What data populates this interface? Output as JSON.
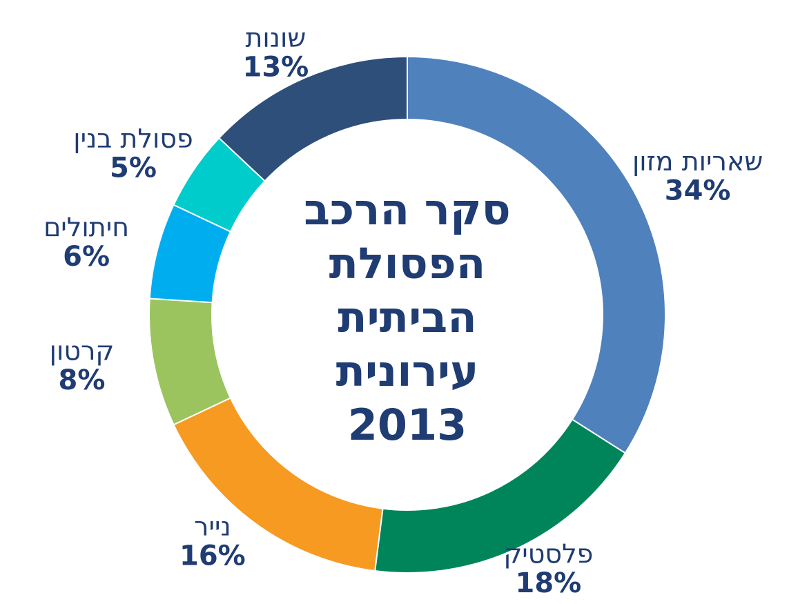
{
  "chart_data": {
    "type": "donut",
    "title": [
      "סקר הרכב",
      "הפסולת",
      "הביתית",
      "עירונית",
      "2013"
    ],
    "categories": [
      "שאריות מזון",
      "פלסטיק",
      "נייר",
      "קרטון",
      "חיתולים",
      "פסולת בנין",
      "שונות"
    ],
    "values": [
      34,
      18,
      16,
      8,
      6,
      5,
      13
    ],
    "value_labels": [
      "34%",
      "18%",
      "16%",
      "8%",
      "6%",
      "5%",
      "13%"
    ],
    "colors": [
      "#4f81bd",
      "#00845a",
      "#f79a22",
      "#9bc45e",
      "#00aeef",
      "#00cccc",
      "#2e4f7a"
    ]
  }
}
